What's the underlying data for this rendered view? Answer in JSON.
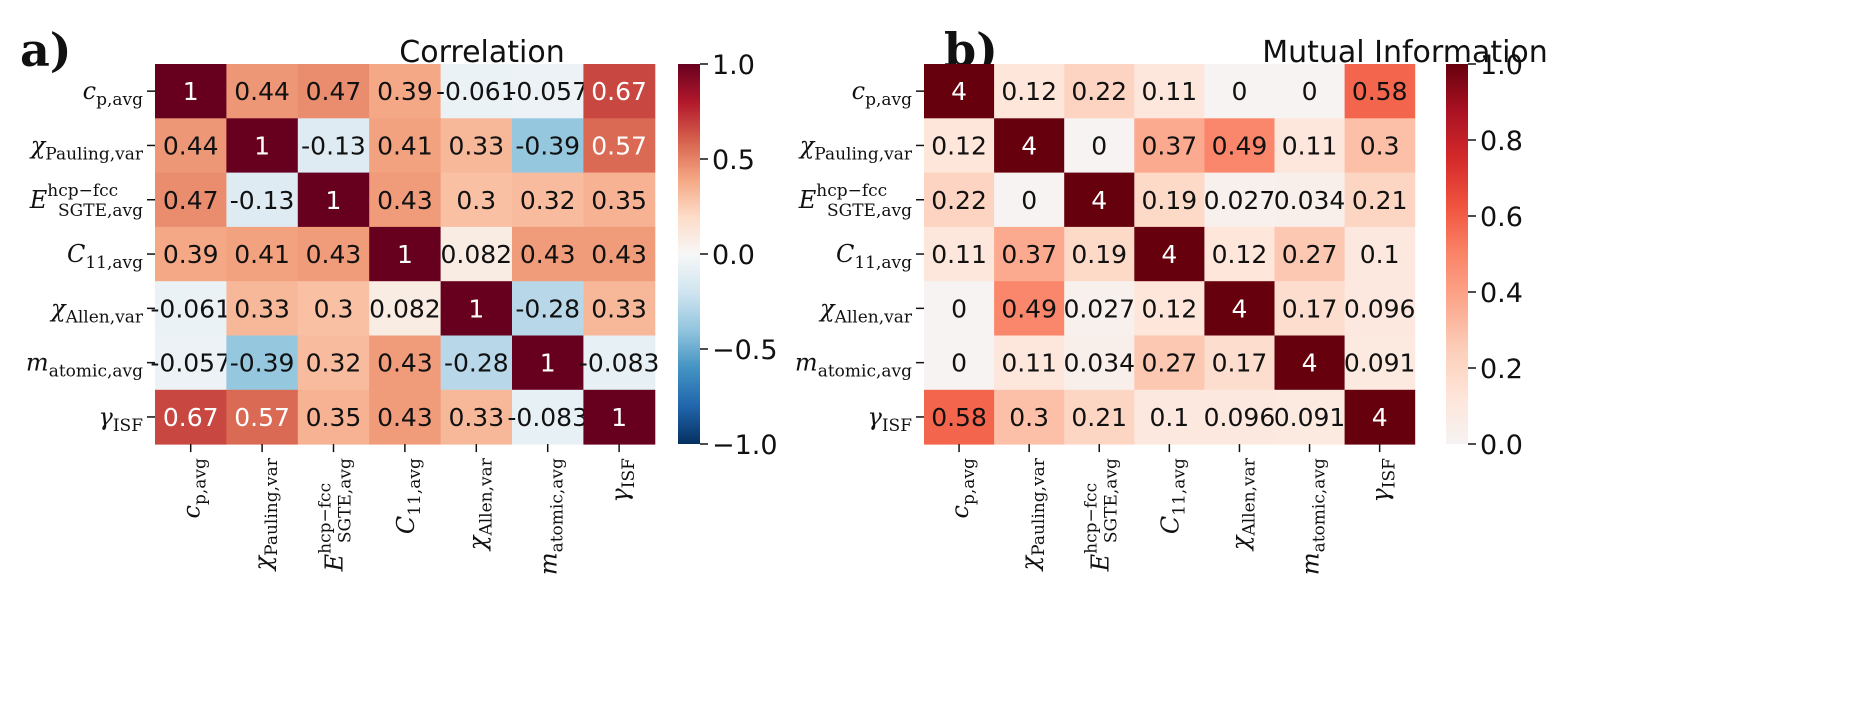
{
  "figure": {
    "variables": [
      {
        "base": "c",
        "sub": "p,avg",
        "sup": ""
      },
      {
        "base": "χ",
        "sub": "Pauling,var",
        "sup": ""
      },
      {
        "base": "E",
        "sub": "SGTE,avg",
        "sup": "hcp−fcc"
      },
      {
        "base": "C",
        "sub": "11,avg",
        "sup": ""
      },
      {
        "base": "χ",
        "sub": "Allen,var",
        "sup": ""
      },
      {
        "base": "m",
        "sub": "atomic,avg",
        "sup": ""
      },
      {
        "base": "γ",
        "sub": "ISF",
        "sup": ""
      }
    ]
  },
  "chart_data": [
    {
      "type": "heatmap",
      "panel_label": "a)",
      "title": "Correlation",
      "colormap": "RdBu_r",
      "vmin": -1.0,
      "vmax": 1.0,
      "colorbar_ticks": [
        "1.0",
        "0.5",
        "0.0",
        "−0.5",
        "−1.0"
      ],
      "colorbar_tick_values": [
        1.0,
        0.5,
        0.0,
        -0.5,
        -1.0
      ],
      "values": [
        [
          1,
          0.44,
          0.47,
          0.39,
          -0.061,
          -0.057,
          0.67
        ],
        [
          0.44,
          1,
          -0.13,
          0.41,
          0.33,
          -0.39,
          0.57
        ],
        [
          0.47,
          -0.13,
          1,
          0.43,
          0.3,
          0.32,
          0.35
        ],
        [
          0.39,
          0.41,
          0.43,
          1,
          0.082,
          0.43,
          0.43
        ],
        [
          -0.061,
          0.33,
          0.3,
          0.082,
          1,
          -0.28,
          0.33
        ],
        [
          -0.057,
          -0.39,
          0.32,
          0.43,
          -0.28,
          1,
          -0.083
        ],
        [
          0.67,
          0.57,
          0.35,
          0.43,
          0.33,
          -0.083,
          1
        ]
      ],
      "labels": [
        [
          "1",
          "0.44",
          "0.47",
          "0.39",
          "-0.061",
          "-0.057",
          "0.67"
        ],
        [
          "0.44",
          "1",
          "-0.13",
          "0.41",
          "0.33",
          "-0.39",
          "0.57"
        ],
        [
          "0.47",
          "-0.13",
          "1",
          "0.43",
          "0.3",
          "0.32",
          "0.35"
        ],
        [
          "0.39",
          "0.41",
          "0.43",
          "1",
          "0.082",
          "0.43",
          "0.43"
        ],
        [
          "-0.061",
          "0.33",
          "0.3",
          "0.082",
          "1",
          "-0.28",
          "0.33"
        ],
        [
          "-0.057",
          "-0.39",
          "0.32",
          "0.43",
          "-0.28",
          "1",
          "-0.083"
        ],
        [
          "0.67",
          "0.57",
          "0.35",
          "0.43",
          "0.33",
          "-0.083",
          "1"
        ]
      ]
    },
    {
      "type": "heatmap",
      "panel_label": "b)",
      "title": "Mutual Information",
      "colormap": "Reds",
      "vmin": 0.0,
      "vmax": 1.0,
      "colorbar_ticks": [
        "1.0",
        "0.8",
        "0.6",
        "0.4",
        "0.2",
        "0.0"
      ],
      "colorbar_tick_values": [
        1.0,
        0.8,
        0.6,
        0.4,
        0.2,
        0.0
      ],
      "values": [
        [
          4,
          0.12,
          0.22,
          0.11,
          0,
          0,
          0.58
        ],
        [
          0.12,
          4,
          0,
          0.37,
          0.49,
          0.11,
          0.3
        ],
        [
          0.22,
          0,
          4,
          0.19,
          0.027,
          0.034,
          0.21
        ],
        [
          0.11,
          0.37,
          0.19,
          4,
          0.12,
          0.27,
          0.1
        ],
        [
          0,
          0.49,
          0.027,
          0.12,
          4,
          0.17,
          0.096
        ],
        [
          0,
          0.11,
          0.034,
          0.27,
          0.17,
          4,
          0.091
        ],
        [
          0.58,
          0.3,
          0.21,
          0.1,
          0.096,
          0.091,
          4
        ]
      ],
      "labels": [
        [
          "4",
          "0.12",
          "0.22",
          "0.11",
          "0",
          "0",
          "0.58"
        ],
        [
          "0.12",
          "4",
          "0",
          "0.37",
          "0.49",
          "0.11",
          "0.3"
        ],
        [
          "0.22",
          "0",
          "4",
          "0.19",
          "0.027",
          "0.034",
          "0.21"
        ],
        [
          "0.11",
          "0.37",
          "0.19",
          "4",
          "0.12",
          "0.27",
          "0.1"
        ],
        [
          "0",
          "0.49",
          "0.027",
          "0.12",
          "4",
          "0.17",
          "0.096"
        ],
        [
          "0",
          "0.11",
          "0.034",
          "0.27",
          "0.17",
          "4",
          "0.091"
        ],
        [
          "0.58",
          "0.3",
          "0.21",
          "0.1",
          "0.096",
          "0.091",
          "4"
        ]
      ]
    }
  ]
}
